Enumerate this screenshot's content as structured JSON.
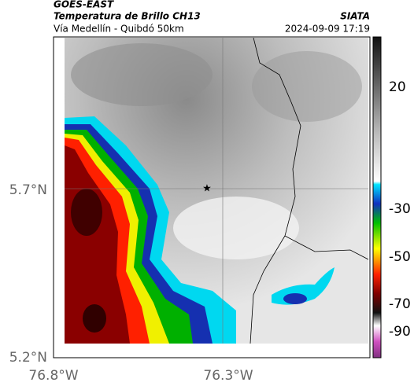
{
  "header": {
    "source": "GOES-EAST",
    "title": "Temperatura de Brillo CH13",
    "organization": "SIATA",
    "location": "Vía Medellín - Quibdó 50km",
    "datetime": "2024-09-09 17:19"
  },
  "map": {
    "lat_labels": [
      "5.7°N",
      "5.2°N"
    ],
    "lon_labels": [
      "76.8°W",
      "76.3°W"
    ]
  },
  "colorbar": {
    "ticks": [
      20,
      -30,
      -50,
      -70,
      -90
    ]
  }
}
